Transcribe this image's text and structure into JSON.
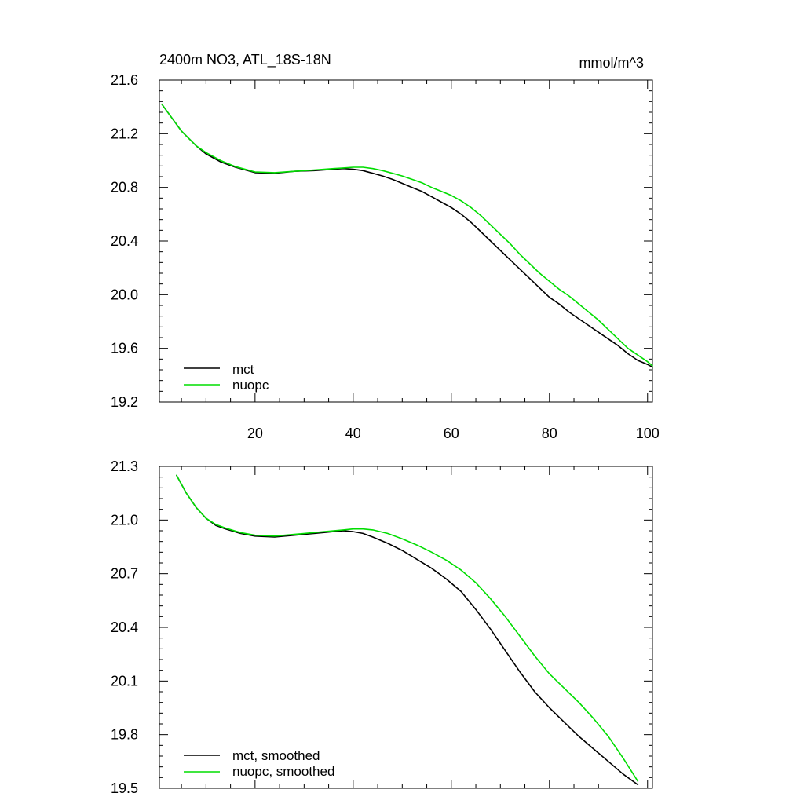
{
  "chart_data": [
    {
      "type": "line",
      "title_left": "2400m NO3, ATL_18S-18N",
      "title_right": "mmol/m^3",
      "xlabel": "",
      "ylabel": "",
      "xlim": [
        0.5,
        101
      ],
      "ylim": [
        19.2,
        21.6
      ],
      "x_ticks": [
        20,
        40,
        60,
        80,
        100
      ],
      "x_tick_labels": [
        "20",
        "40",
        "60",
        "80",
        "100"
      ],
      "y_ticks": [
        19.2,
        19.6,
        20.0,
        20.4,
        20.8,
        21.2,
        21.6
      ],
      "y_tick_labels": [
        "19.2",
        "19.6",
        "20.0",
        "20.4",
        "20.8",
        "21.2",
        "21.6"
      ],
      "legend_position": "bottom-left",
      "series": [
        {
          "name": "mct",
          "color": "#000000",
          "x": [
            1,
            3,
            5,
            8,
            10,
            13,
            16,
            20,
            24,
            28,
            32,
            36,
            38,
            40,
            42,
            44,
            46,
            48,
            50,
            52,
            54,
            56,
            58,
            60,
            62,
            64,
            66,
            68,
            70,
            72,
            74,
            76,
            78,
            80,
            82,
            84,
            86,
            88,
            90,
            92,
            94,
            96,
            98,
            100,
            101
          ],
          "values": [
            21.42,
            21.32,
            21.22,
            21.11,
            21.05,
            20.99,
            20.95,
            20.91,
            20.905,
            20.92,
            20.925,
            20.935,
            20.94,
            20.935,
            20.925,
            20.905,
            20.885,
            20.86,
            20.83,
            20.8,
            20.77,
            20.73,
            20.69,
            20.65,
            20.6,
            20.54,
            20.47,
            20.4,
            20.33,
            20.26,
            20.19,
            20.12,
            20.05,
            19.98,
            19.93,
            19.87,
            19.82,
            19.77,
            19.72,
            19.67,
            19.62,
            19.56,
            19.51,
            19.48,
            19.46
          ]
        },
        {
          "name": "nuopc",
          "color": "#00dd00",
          "x": [
            1,
            3,
            5,
            8,
            10,
            13,
            16,
            20,
            24,
            28,
            32,
            36,
            38,
            40,
            42,
            44,
            46,
            48,
            50,
            52,
            54,
            56,
            58,
            60,
            62,
            64,
            66,
            68,
            70,
            72,
            74,
            76,
            78,
            80,
            82,
            84,
            86,
            88,
            90,
            92,
            94,
            96,
            98,
            100,
            101
          ],
          "values": [
            21.42,
            21.32,
            21.22,
            21.11,
            21.06,
            21.0,
            20.955,
            20.915,
            20.91,
            20.92,
            20.93,
            20.94,
            20.945,
            20.95,
            20.95,
            20.94,
            20.925,
            20.905,
            20.885,
            20.86,
            20.835,
            20.8,
            20.77,
            20.74,
            20.7,
            20.65,
            20.59,
            20.52,
            20.45,
            20.38,
            20.3,
            20.23,
            20.16,
            20.1,
            20.04,
            19.99,
            19.93,
            19.87,
            19.81,
            19.74,
            19.67,
            19.6,
            19.55,
            19.5,
            19.47
          ]
        }
      ]
    },
    {
      "type": "line",
      "xlabel": "",
      "ylabel": "",
      "xlim": [
        0.5,
        101
      ],
      "ylim": [
        19.5,
        21.3
      ],
      "x_ticks": [
        20,
        40,
        60,
        80,
        100
      ],
      "y_ticks": [
        19.5,
        19.8,
        20.1,
        20.4,
        20.7,
        21.0,
        21.3
      ],
      "y_tick_labels": [
        "19.5",
        "19.8",
        "20.1",
        "20.4",
        "20.7",
        "21.0",
        "21.3"
      ],
      "legend_position": "bottom-left",
      "series": [
        {
          "name": "mct, smoothed",
          "color": "#000000",
          "x": [
            4,
            6,
            8,
            10,
            12,
            14,
            17,
            20,
            24,
            28,
            32,
            36,
            38,
            40,
            42,
            44,
            47,
            50,
            53,
            56,
            59,
            62,
            65,
            68,
            71,
            74,
            77,
            80,
            83,
            86,
            89,
            92,
            95,
            98
          ],
          "values": [
            21.25,
            21.15,
            21.07,
            21.01,
            20.97,
            20.95,
            20.925,
            20.91,
            20.905,
            20.915,
            20.925,
            20.935,
            20.94,
            20.935,
            20.925,
            20.905,
            20.87,
            20.83,
            20.78,
            20.73,
            20.67,
            20.6,
            20.5,
            20.39,
            20.27,
            20.15,
            20.04,
            19.95,
            19.87,
            19.79,
            19.72,
            19.65,
            19.58,
            19.52
          ]
        },
        {
          "name": "nuopc, smoothed",
          "color": "#00dd00",
          "x": [
            4,
            6,
            8,
            10,
            12,
            14,
            17,
            20,
            24,
            28,
            32,
            36,
            38,
            40,
            42,
            44,
            47,
            50,
            53,
            56,
            59,
            62,
            65,
            68,
            71,
            74,
            77,
            80,
            83,
            86,
            89,
            92,
            95,
            98
          ],
          "values": [
            21.25,
            21.15,
            21.07,
            21.01,
            20.975,
            20.955,
            20.93,
            20.915,
            20.91,
            20.92,
            20.93,
            20.94,
            20.945,
            20.95,
            20.95,
            20.945,
            20.925,
            20.895,
            20.86,
            20.82,
            20.775,
            20.72,
            20.65,
            20.56,
            20.46,
            20.35,
            20.24,
            20.14,
            20.06,
            19.98,
            19.89,
            19.79,
            19.67,
            19.54
          ]
        }
      ]
    }
  ]
}
